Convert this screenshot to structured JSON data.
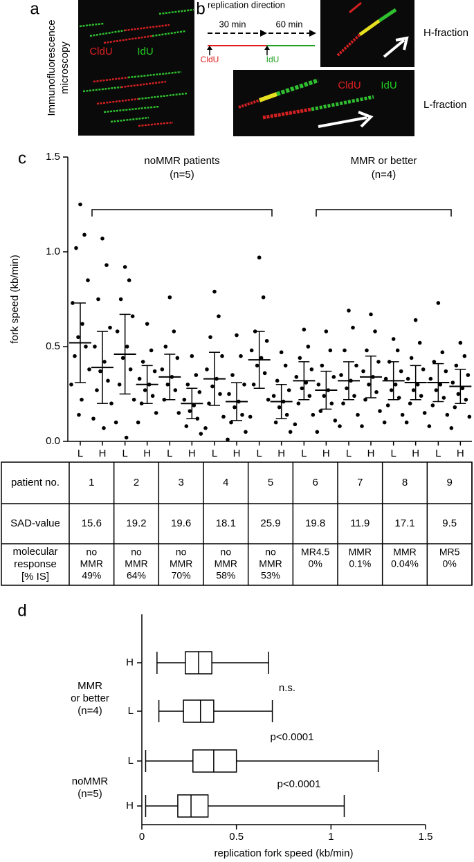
{
  "panel_a": {
    "label": "a",
    "side_label": [
      "Immunofluorescence",
      "microscopy"
    ],
    "cldu": "CldU",
    "idu": "IdU"
  },
  "panel_b": {
    "label": "b",
    "title": "replication direction",
    "time1": "30 min",
    "time2": "60 min",
    "cldu": "CldU",
    "idu": "IdU",
    "img_cldu": "CldU",
    "img_idu": "IdU",
    "h_fraction": "H-fraction",
    "l_fraction": "L-fraction"
  },
  "panel_c_label": "c",
  "panel_d_label": "d",
  "chart_data": [
    {
      "type": "dotplot",
      "ylabel": "fork speed (kb/min)",
      "categories": [
        "L",
        "H",
        "L",
        "H",
        "L",
        "H",
        "L",
        "H",
        "L",
        "H",
        "L",
        "H",
        "L",
        "H",
        "L",
        "H",
        "L",
        "H"
      ],
      "values": [
        [
          1.25,
          1.09,
          1.02,
          0.85,
          0.73,
          0.62,
          0.55,
          0.5,
          0.45,
          0.38,
          0.3,
          0.22,
          0.14
        ],
        [
          1.07,
          0.93,
          0.75,
          0.6,
          0.5,
          0.42,
          0.37,
          0.32,
          0.27,
          0.2,
          0.12,
          0.07
        ],
        [
          0.92,
          0.85,
          0.75,
          0.66,
          0.58,
          0.5,
          0.44,
          0.38,
          0.3,
          0.22,
          0.1,
          0.02
        ],
        [
          0.62,
          0.48,
          0.42,
          0.37,
          0.33,
          0.3,
          0.27,
          0.24,
          0.2,
          0.15,
          0.1
        ],
        [
          0.76,
          0.58,
          0.5,
          0.44,
          0.38,
          0.34,
          0.3,
          0.27,
          0.22,
          0.15
        ],
        [
          0.45,
          0.35,
          0.3,
          0.26,
          0.22,
          0.19,
          0.16,
          0.12,
          0.08,
          0.04
        ],
        [
          0.79,
          0.66,
          0.55,
          0.45,
          0.38,
          0.33,
          0.29,
          0.25,
          0.2,
          0.13,
          0.07
        ],
        [
          0.56,
          0.45,
          0.35,
          0.3,
          0.25,
          0.21,
          0.18,
          0.14,
          0.1,
          0.05,
          0.01
        ],
        [
          0.97,
          0.76,
          0.58,
          0.53,
          0.48,
          0.44,
          0.4,
          0.36,
          0.3,
          0.22,
          0.13
        ],
        [
          0.47,
          0.4,
          0.32,
          0.27,
          0.24,
          0.21,
          0.18,
          0.14,
          0.1,
          0.05
        ],
        [
          0.59,
          0.5,
          0.44,
          0.38,
          0.34,
          0.31,
          0.28,
          0.24,
          0.2,
          0.14,
          0.09
        ],
        [
          0.58,
          0.48,
          0.4,
          0.34,
          0.3,
          0.27,
          0.24,
          0.2,
          0.16,
          0.11,
          0.05
        ],
        [
          0.69,
          0.6,
          0.48,
          0.4,
          0.35,
          0.32,
          0.28,
          0.24,
          0.2,
          0.14,
          0.08
        ],
        [
          0.67,
          0.58,
          0.48,
          0.42,
          0.37,
          0.34,
          0.3,
          0.26,
          0.22,
          0.16,
          0.08
        ],
        [
          0.54,
          0.48,
          0.42,
          0.37,
          0.33,
          0.3,
          0.27,
          0.23,
          0.19,
          0.14,
          0.1
        ],
        [
          0.64,
          0.52,
          0.44,
          0.38,
          0.33,
          0.3,
          0.27,
          0.24,
          0.2,
          0.15,
          0.1
        ],
        [
          0.73,
          0.47,
          0.42,
          0.37,
          0.33,
          0.3,
          0.27,
          0.23,
          0.19,
          0.14,
          0.08
        ],
        [
          0.52,
          0.45,
          0.4,
          0.35,
          0.31,
          0.28,
          0.25,
          0.22,
          0.18,
          0.13,
          0.07
        ]
      ],
      "mean": [
        0.52,
        0.39,
        0.46,
        0.3,
        0.34,
        0.2,
        0.33,
        0.21,
        0.43,
        0.21,
        0.32,
        0.27,
        0.32,
        0.34,
        0.32,
        0.31,
        0.31,
        0.29
      ],
      "sd": [
        0.21,
        0.19,
        0.21,
        0.1,
        0.12,
        0.08,
        0.14,
        0.1,
        0.15,
        0.09,
        0.1,
        0.1,
        0.1,
        0.11,
        0.1,
        0.09,
        0.1,
        0.09
      ],
      "ylim": [
        0,
        1.5
      ],
      "yticks": [
        {
          "value": 0,
          "label": "0.0"
        },
        {
          "value": 0.5,
          "label": "0.5"
        },
        {
          "value": 1,
          "label": "1.0"
        },
        {
          "value": 1.5,
          "label": "1.5"
        }
      ],
      "brackets": [
        {
          "label": "noMMR patients",
          "n": "(n=5)"
        },
        {
          "label": "MMR or better",
          "n": "(n=4)"
        }
      ]
    },
    {
      "type": "box",
      "categories": [
        "H",
        "L",
        "L",
        "H"
      ],
      "whislo": [
        0.08,
        0.09,
        0.02,
        0.02
      ],
      "q1": [
        0.23,
        0.22,
        0.27,
        0.19
      ],
      "med": [
        0.3,
        0.31,
        0.38,
        0.26
      ],
      "q3": [
        0.37,
        0.38,
        0.5,
        0.35
      ],
      "whishi": [
        0.67,
        0.69,
        1.25,
        1.07
      ],
      "xlim": [
        0,
        1.5
      ],
      "xticks": [
        0,
        0.5,
        1,
        1.5
      ],
      "xlabel": "replication fork speed (kb/min)",
      "annotations": [
        "n.s.",
        "p<0.0001",
        "p<0.0001"
      ],
      "group_labels": [
        [
          "MMR",
          "or better",
          "(n=4)"
        ],
        [
          "noMMR",
          "(n=5)"
        ]
      ]
    }
  ],
  "table": {
    "row_labels": [
      [
        "patient no."
      ],
      [
        "SAD-value"
      ],
      [
        "molecular",
        "response",
        "[% IS]"
      ]
    ],
    "patients": [
      1,
      2,
      3,
      4,
      5,
      6,
      7,
      8,
      9
    ],
    "sad": [
      15.6,
      19.2,
      19.6,
      18.1,
      25.9,
      19.8,
      11.9,
      17.1,
      9.5
    ],
    "response": [
      [
        "no",
        "MMR",
        "49%"
      ],
      [
        "no",
        "MMR",
        "64%"
      ],
      [
        "no",
        "MMR",
        "70%"
      ],
      [
        "no",
        "MMR",
        "58%"
      ],
      [
        "no",
        "MMR",
        "53%"
      ],
      [
        "MR4.5",
        "0%"
      ],
      [
        "MMR",
        "0.1%"
      ],
      [
        "MMR",
        "0.04%"
      ],
      [
        "MR5",
        "0%"
      ]
    ]
  }
}
